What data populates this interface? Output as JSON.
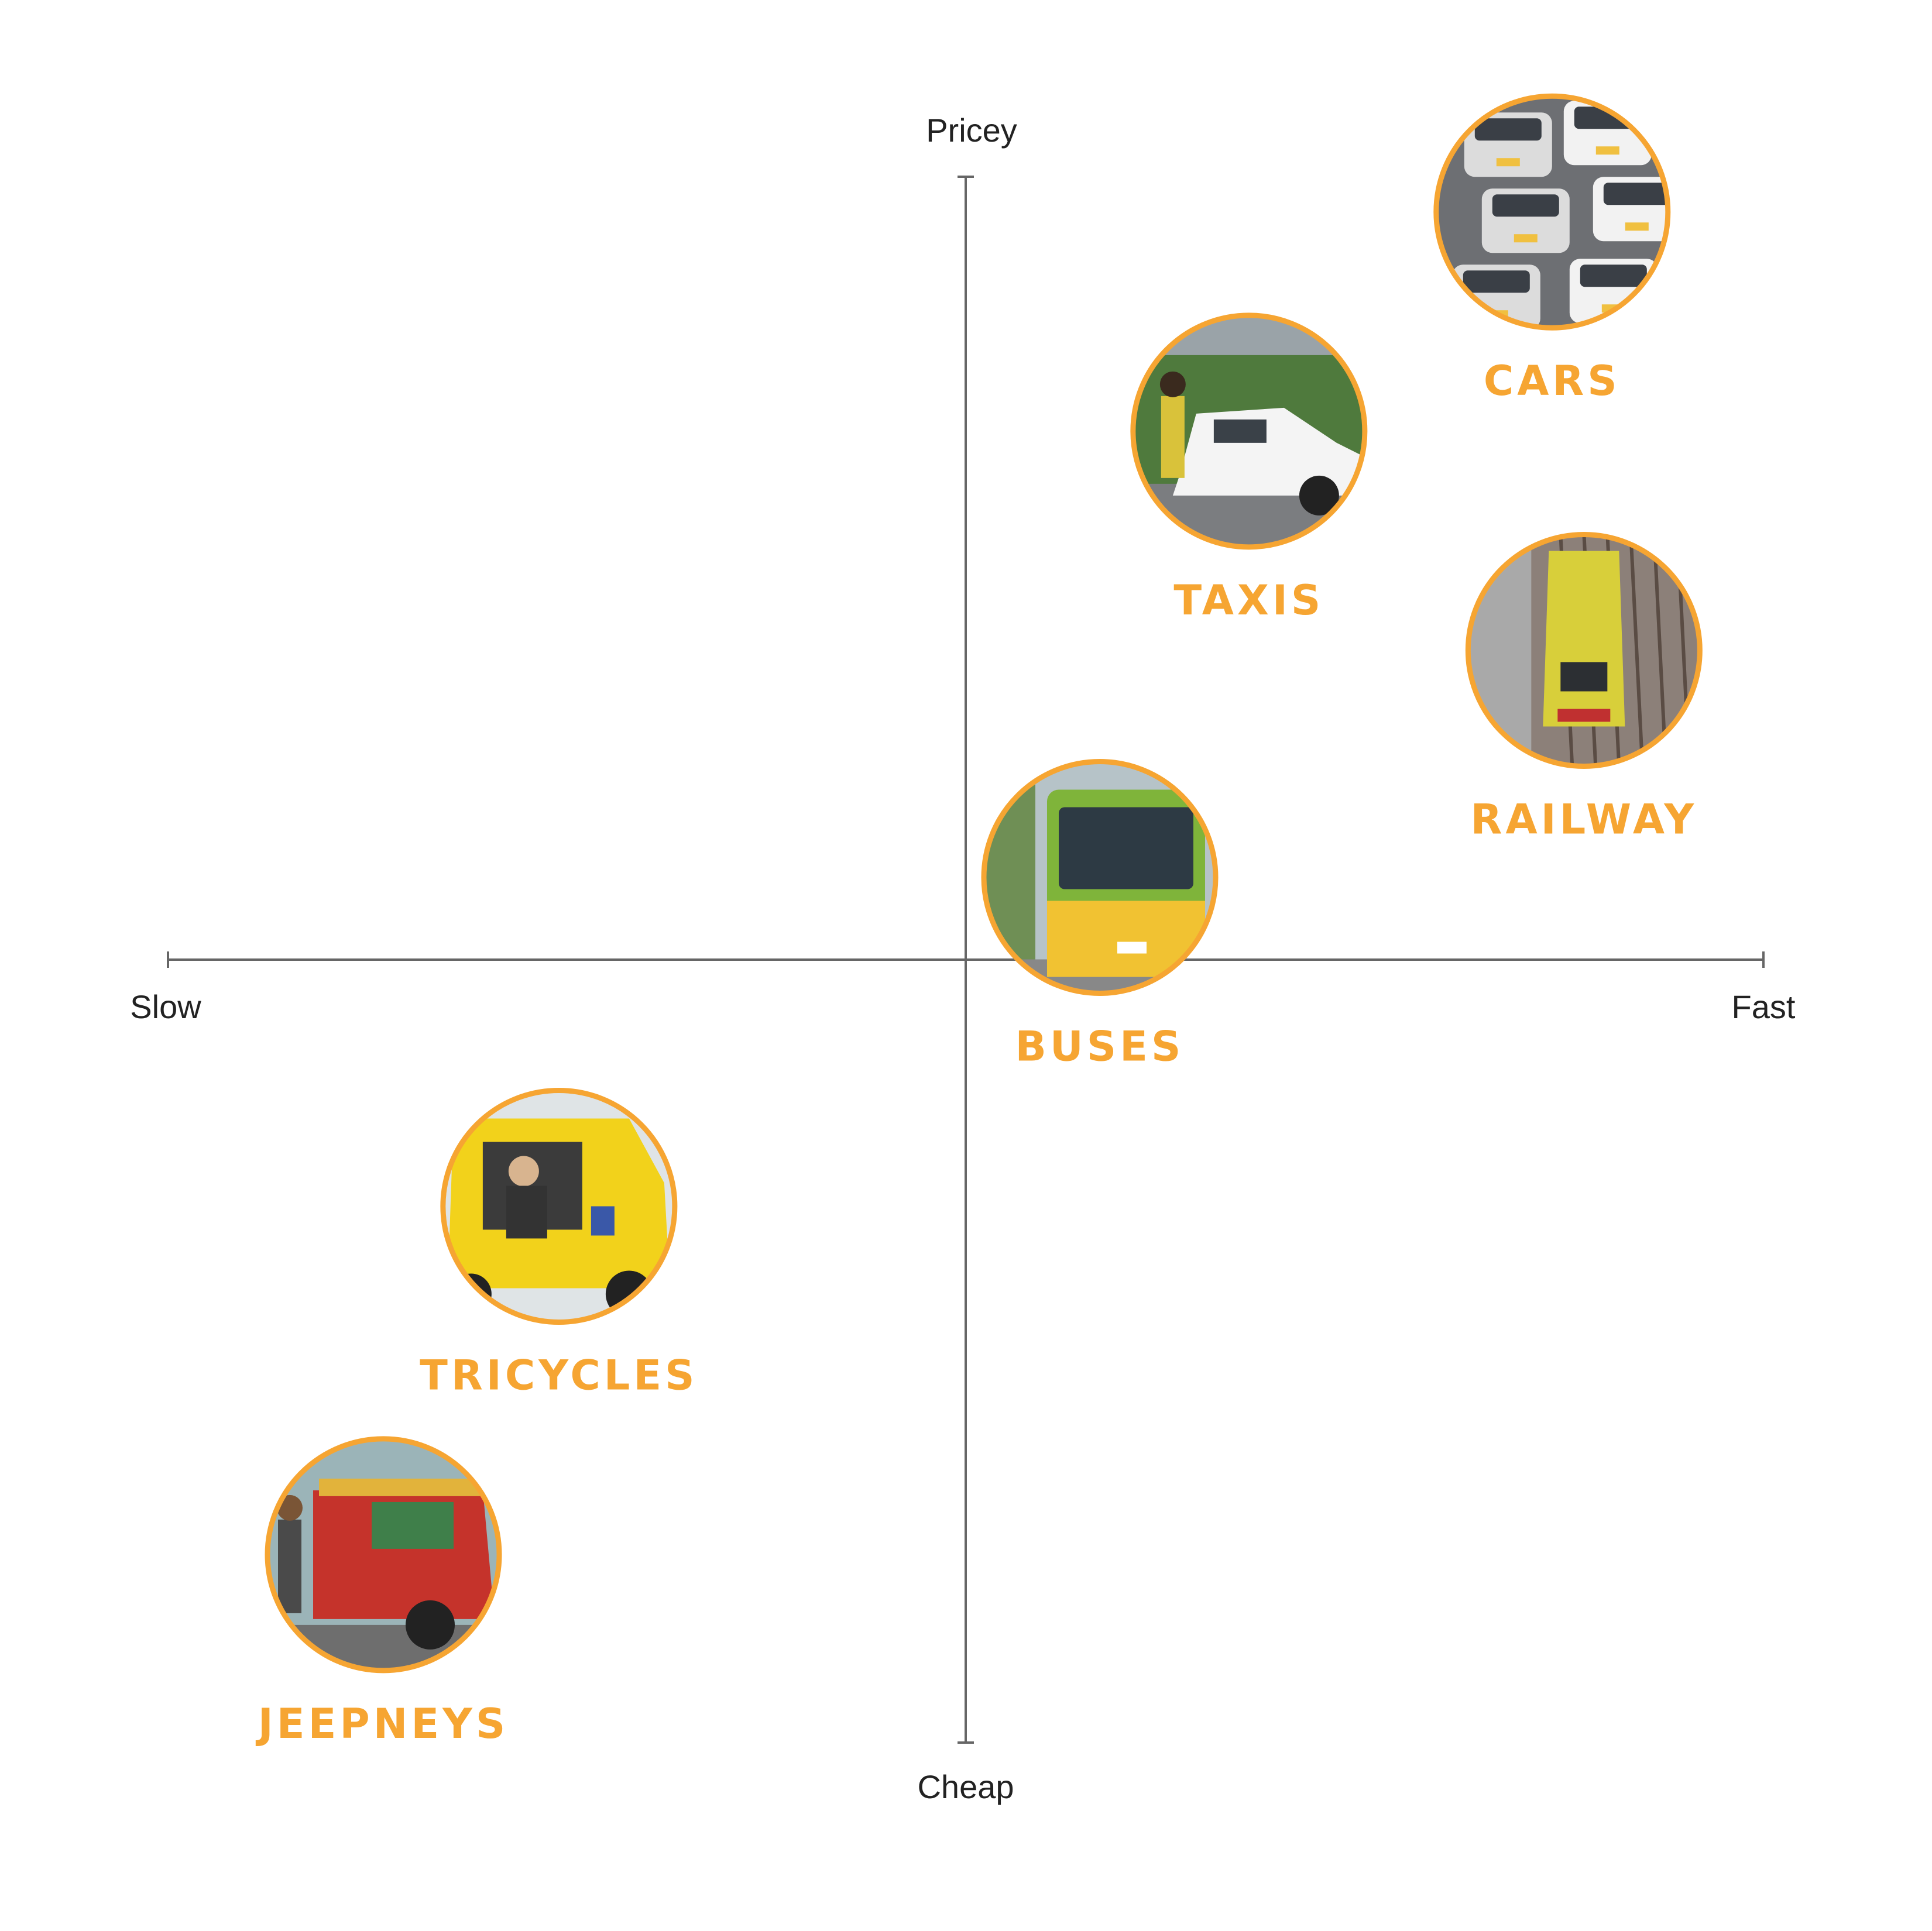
{
  "chart_data": {
    "type": "scatter",
    "axes": {
      "x": {
        "min_label": "Slow",
        "max_label": "Fast"
      },
      "y": {
        "min_label": "Cheap",
        "max_label": "Pricey"
      },
      "range": [
        -1,
        1
      ],
      "grid": false
    },
    "accent_color": "#F6A532",
    "axis_color": "#666666",
    "points": [
      {
        "label": "CARS",
        "x": 0.735,
        "y": 0.955,
        "icon": "cars-photo-icon"
      },
      {
        "label": "TAXIS",
        "x": 0.355,
        "y": 0.675,
        "icon": "taxi-photo-icon"
      },
      {
        "label": "RAILWAY",
        "x": 0.775,
        "y": 0.395,
        "icon": "train-photo-icon"
      },
      {
        "label": "BUSES",
        "x": 0.168,
        "y": 0.105,
        "icon": "bus-photo-icon"
      },
      {
        "label": "TRICYCLES",
        "x": -0.51,
        "y": -0.315,
        "icon": "tricycle-photo-icon"
      },
      {
        "label": "JEEPNEYS",
        "x": -0.73,
        "y": -0.76,
        "icon": "jeepney-photo-icon"
      }
    ]
  }
}
